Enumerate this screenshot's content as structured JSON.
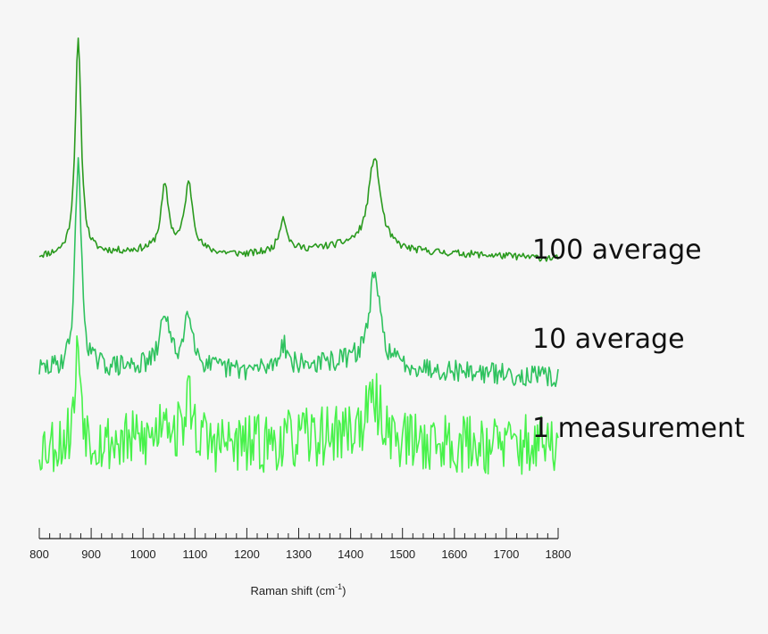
{
  "chart_data": {
    "type": "line",
    "title": "",
    "xlabel": "Raman shift (cm",
    "xlabel_sup": "-1",
    "xlabel_suffix": ")",
    "ylabel": "",
    "xlim": [
      800,
      1800
    ],
    "x_ticks": [
      800,
      900,
      1000,
      1100,
      1200,
      1300,
      1400,
      1500,
      1600,
      1700,
      1800
    ],
    "minor_tick_step": 20,
    "grid": false,
    "series": [
      {
        "name": "100 average",
        "color": "#2a9a1e",
        "noise": 4,
        "seed": 11,
        "baseline": [
          [
            800,
            0
          ],
          [
            1000,
            6
          ],
          [
            1200,
            2
          ],
          [
            1400,
            12
          ],
          [
            1500,
            6
          ],
          [
            1800,
            -2
          ]
        ],
        "peaks": [
          {
            "center": 875,
            "height": 240,
            "width": 7
          },
          {
            "center": 1042,
            "height": 72,
            "width": 9
          },
          {
            "center": 1088,
            "height": 76,
            "width": 10
          },
          {
            "center": 1270,
            "height": 38,
            "width": 9
          },
          {
            "center": 1446,
            "height": 102,
            "width": 14
          }
        ]
      },
      {
        "name": "10 average",
        "color": "#2ec25e",
        "noise": 12,
        "seed": 29,
        "baseline": [
          [
            800,
            0
          ],
          [
            1000,
            4
          ],
          [
            1200,
            0
          ],
          [
            1400,
            10
          ],
          [
            1500,
            4
          ],
          [
            1800,
            -8
          ]
        ],
        "peaks": [
          {
            "center": 875,
            "height": 240,
            "width": 7
          },
          {
            "center": 1042,
            "height": 62,
            "width": 10
          },
          {
            "center": 1088,
            "height": 66,
            "width": 10
          },
          {
            "center": 1270,
            "height": 28,
            "width": 9
          },
          {
            "center": 1446,
            "height": 98,
            "width": 13
          }
        ]
      },
      {
        "name": "1 measurement",
        "color": "#47f24a",
        "noise": 34,
        "seed": 53,
        "baseline": [
          [
            800,
            0
          ],
          [
            1000,
            4
          ],
          [
            1200,
            0
          ],
          [
            1400,
            14
          ],
          [
            1500,
            4
          ],
          [
            1800,
            0
          ]
        ],
        "peaks": [
          {
            "center": 875,
            "height": 110,
            "width": 7
          },
          {
            "center": 1042,
            "height": 40,
            "width": 10
          },
          {
            "center": 1088,
            "height": 50,
            "width": 10
          },
          {
            "center": 1446,
            "height": 40,
            "width": 18
          }
        ]
      }
    ]
  }
}
